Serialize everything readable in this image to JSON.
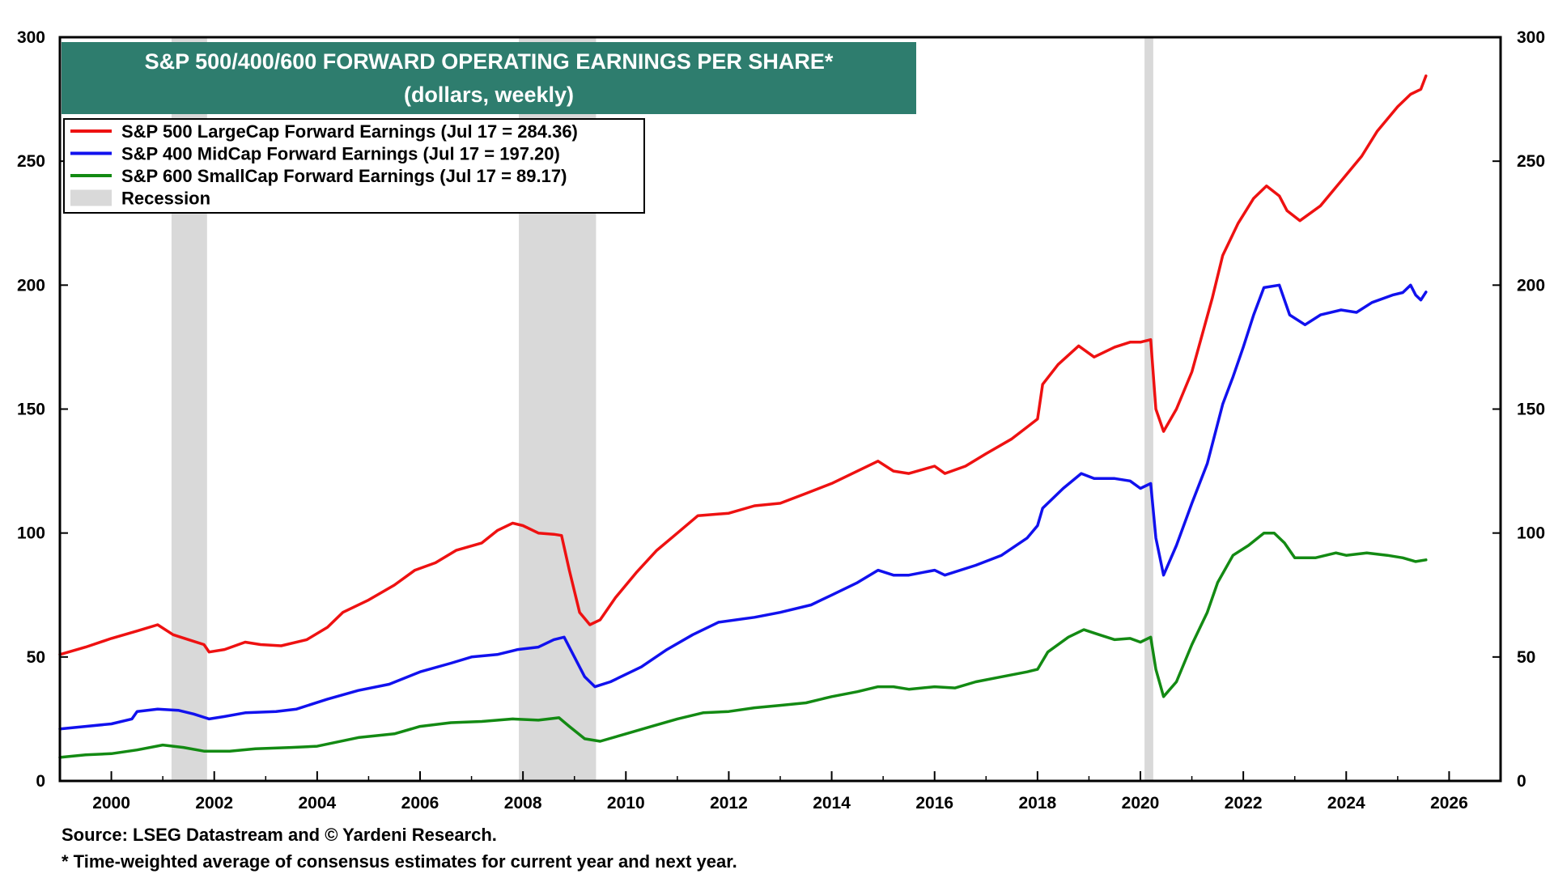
{
  "chart_data": {
    "type": "line",
    "title": "S&P 500/400/600 FORWARD OPERATING EARNINGS PER SHARE*",
    "subtitle": "(dollars, weekly)",
    "xlabel": "",
    "ylabel": "",
    "xlim": [
      1999.0,
      2027.0
    ],
    "ylim": [
      0,
      300
    ],
    "x_ticks": [
      2000,
      2002,
      2004,
      2006,
      2008,
      2010,
      2012,
      2014,
      2016,
      2018,
      2020,
      2022,
      2024,
      2026
    ],
    "x_tick_labels": [
      "2000",
      "2002",
      "2004",
      "2006",
      "2008",
      "2010",
      "2012",
      "2014",
      "2016",
      "2018",
      "2020",
      "2022",
      "2024",
      "2026"
    ],
    "y_ticks": [
      0,
      50,
      100,
      150,
      200,
      250,
      300
    ],
    "y_tick_labels": [
      "0",
      "50",
      "100",
      "150",
      "200",
      "250",
      "300"
    ],
    "recessions": [
      {
        "start": 2001.17,
        "end": 2001.86
      },
      {
        "start": 2007.92,
        "end": 2009.42
      },
      {
        "start": 2020.08,
        "end": 2020.25
      }
    ],
    "legend": [
      {
        "label": "S&P 500 LargeCap Forward Earnings (Jul 17 = 284.36)",
        "color": "#ee1111",
        "kind": "line"
      },
      {
        "label": "S&P 400 MidCap Forward Earnings (Jul 17 = 197.20)",
        "color": "#1111ee",
        "kind": "line"
      },
      {
        "label": "S&P 600 SmallCap Forward Earnings (Jul 17 = 89.17)",
        "color": "#138a13",
        "kind": "line"
      },
      {
        "label": "Recession",
        "color": "#d9d9d9",
        "kind": "box"
      }
    ],
    "series": [
      {
        "name": "S&P 500 LargeCap Forward Earnings",
        "color": "#ee1111",
        "points": [
          [
            1999.0,
            51
          ],
          [
            1999.5,
            54
          ],
          [
            2000.0,
            57.5
          ],
          [
            2000.5,
            60.5
          ],
          [
            2000.9,
            63
          ],
          [
            2001.2,
            59
          ],
          [
            2001.5,
            57
          ],
          [
            2001.8,
            55
          ],
          [
            2001.9,
            52
          ],
          [
            2002.2,
            53
          ],
          [
            2002.6,
            56
          ],
          [
            2002.9,
            55
          ],
          [
            2003.3,
            54.5
          ],
          [
            2003.8,
            57
          ],
          [
            2004.2,
            62
          ],
          [
            2004.5,
            68
          ],
          [
            2005.0,
            73
          ],
          [
            2005.5,
            79
          ],
          [
            2005.9,
            85
          ],
          [
            2006.3,
            88
          ],
          [
            2006.7,
            93
          ],
          [
            2007.2,
            96
          ],
          [
            2007.5,
            101
          ],
          [
            2007.8,
            104
          ],
          [
            2008.0,
            103
          ],
          [
            2008.3,
            100
          ],
          [
            2008.6,
            99.5
          ],
          [
            2008.75,
            99
          ],
          [
            2008.9,
            85
          ],
          [
            2009.1,
            68
          ],
          [
            2009.3,
            63
          ],
          [
            2009.5,
            65
          ],
          [
            2009.8,
            74
          ],
          [
            2010.2,
            84
          ],
          [
            2010.6,
            93
          ],
          [
            2011.0,
            100
          ],
          [
            2011.4,
            107
          ],
          [
            2012.0,
            108
          ],
          [
            2012.5,
            111
          ],
          [
            2013.0,
            112
          ],
          [
            2013.5,
            116
          ],
          [
            2014.0,
            120
          ],
          [
            2014.5,
            125
          ],
          [
            2014.9,
            129
          ],
          [
            2015.2,
            125
          ],
          [
            2015.5,
            124
          ],
          [
            2016.0,
            127
          ],
          [
            2016.2,
            124
          ],
          [
            2016.6,
            127
          ],
          [
            2017.0,
            132
          ],
          [
            2017.5,
            138
          ],
          [
            2018.0,
            146
          ],
          [
            2018.1,
            160
          ],
          [
            2018.4,
            168
          ],
          [
            2018.8,
            175.5
          ],
          [
            2019.1,
            171
          ],
          [
            2019.5,
            175
          ],
          [
            2019.8,
            177
          ],
          [
            2020.0,
            177
          ],
          [
            2020.2,
            178
          ],
          [
            2020.3,
            150
          ],
          [
            2020.45,
            141
          ],
          [
            2020.7,
            150
          ],
          [
            2021.0,
            165
          ],
          [
            2021.2,
            180
          ],
          [
            2021.4,
            195
          ],
          [
            2021.6,
            212
          ],
          [
            2021.9,
            225
          ],
          [
            2022.2,
            235
          ],
          [
            2022.45,
            240
          ],
          [
            2022.7,
            236
          ],
          [
            2022.85,
            230
          ],
          [
            2023.1,
            226
          ],
          [
            2023.5,
            232
          ],
          [
            2023.9,
            242
          ],
          [
            2024.3,
            252
          ],
          [
            2024.6,
            262
          ],
          [
            2025.0,
            272
          ],
          [
            2025.25,
            277
          ],
          [
            2025.45,
            279
          ],
          [
            2025.55,
            284.4
          ]
        ]
      },
      {
        "name": "S&P 400 MidCap Forward Earnings",
        "color": "#1111ee",
        "points": [
          [
            1999.0,
            21
          ],
          [
            1999.5,
            22
          ],
          [
            2000.0,
            23
          ],
          [
            2000.4,
            25
          ],
          [
            2000.5,
            28
          ],
          [
            2000.9,
            29
          ],
          [
            2001.3,
            28.5
          ],
          [
            2001.6,
            27
          ],
          [
            2001.9,
            25
          ],
          [
            2002.2,
            26
          ],
          [
            2002.6,
            27.5
          ],
          [
            2003.2,
            28
          ],
          [
            2003.6,
            29
          ],
          [
            2004.2,
            33
          ],
          [
            2004.8,
            36.5
          ],
          [
            2005.4,
            39
          ],
          [
            2006.0,
            44
          ],
          [
            2006.6,
            47.5
          ],
          [
            2007.0,
            50
          ],
          [
            2007.5,
            51
          ],
          [
            2007.9,
            53
          ],
          [
            2008.3,
            54
          ],
          [
            2008.6,
            57
          ],
          [
            2008.8,
            58
          ],
          [
            2009.0,
            50
          ],
          [
            2009.2,
            42
          ],
          [
            2009.4,
            38
          ],
          [
            2009.7,
            40
          ],
          [
            2010.3,
            46
          ],
          [
            2010.8,
            53
          ],
          [
            2011.3,
            59
          ],
          [
            2011.8,
            64
          ],
          [
            2012.5,
            66
          ],
          [
            2013.0,
            68
          ],
          [
            2013.6,
            71
          ],
          [
            2014.0,
            75
          ],
          [
            2014.5,
            80
          ],
          [
            2014.9,
            85
          ],
          [
            2015.2,
            83
          ],
          [
            2015.5,
            83
          ],
          [
            2016.0,
            85
          ],
          [
            2016.2,
            83
          ],
          [
            2016.8,
            87
          ],
          [
            2017.3,
            91
          ],
          [
            2017.8,
            98
          ],
          [
            2018.0,
            103
          ],
          [
            2018.1,
            110
          ],
          [
            2018.5,
            118
          ],
          [
            2018.85,
            124
          ],
          [
            2019.1,
            122
          ],
          [
            2019.5,
            122
          ],
          [
            2019.8,
            121
          ],
          [
            2020.0,
            118
          ],
          [
            2020.2,
            120
          ],
          [
            2020.3,
            98
          ],
          [
            2020.45,
            83
          ],
          [
            2020.7,
            95
          ],
          [
            2021.0,
            112
          ],
          [
            2021.3,
            128
          ],
          [
            2021.6,
            152
          ],
          [
            2021.8,
            163
          ],
          [
            2022.0,
            175
          ],
          [
            2022.2,
            188
          ],
          [
            2022.4,
            199
          ],
          [
            2022.7,
            200
          ],
          [
            2022.9,
            188
          ],
          [
            2023.2,
            184
          ],
          [
            2023.5,
            188
          ],
          [
            2023.9,
            190
          ],
          [
            2024.2,
            189
          ],
          [
            2024.5,
            193
          ],
          [
            2024.9,
            196
          ],
          [
            2025.1,
            197
          ],
          [
            2025.25,
            200
          ],
          [
            2025.35,
            196
          ],
          [
            2025.45,
            194
          ],
          [
            2025.55,
            197.2
          ]
        ]
      },
      {
        "name": "S&P 600 SmallCap Forward Earnings",
        "color": "#138a13",
        "points": [
          [
            1999.0,
            9.5
          ],
          [
            1999.5,
            10.5
          ],
          [
            2000.0,
            11
          ],
          [
            2000.5,
            12.5
          ],
          [
            2001.0,
            14.5
          ],
          [
            2001.4,
            13.5
          ],
          [
            2001.8,
            12
          ],
          [
            2002.3,
            12
          ],
          [
            2002.8,
            13
          ],
          [
            2003.5,
            13.5
          ],
          [
            2004.0,
            14
          ],
          [
            2004.8,
            17.5
          ],
          [
            2005.5,
            19
          ],
          [
            2006.0,
            22
          ],
          [
            2006.6,
            23.5
          ],
          [
            2007.2,
            24
          ],
          [
            2007.8,
            25
          ],
          [
            2008.3,
            24.5
          ],
          [
            2008.7,
            25.5
          ],
          [
            2008.9,
            22
          ],
          [
            2009.2,
            17
          ],
          [
            2009.5,
            16
          ],
          [
            2010.0,
            19
          ],
          [
            2010.5,
            22
          ],
          [
            2011.0,
            25
          ],
          [
            2011.5,
            27.5
          ],
          [
            2012.0,
            28
          ],
          [
            2012.5,
            29.5
          ],
          [
            2013.0,
            30.5
          ],
          [
            2013.5,
            31.5
          ],
          [
            2014.0,
            34
          ],
          [
            2014.5,
            36
          ],
          [
            2014.9,
            38
          ],
          [
            2015.2,
            38
          ],
          [
            2015.5,
            37
          ],
          [
            2016.0,
            38
          ],
          [
            2016.4,
            37.5
          ],
          [
            2016.8,
            40
          ],
          [
            2017.3,
            42
          ],
          [
            2017.8,
            44
          ],
          [
            2018.0,
            45
          ],
          [
            2018.2,
            52
          ],
          [
            2018.6,
            58
          ],
          [
            2018.9,
            61
          ],
          [
            2019.2,
            59
          ],
          [
            2019.5,
            57
          ],
          [
            2019.8,
            57.5
          ],
          [
            2020.0,
            56
          ],
          [
            2020.2,
            58
          ],
          [
            2020.3,
            45
          ],
          [
            2020.45,
            34
          ],
          [
            2020.7,
            40
          ],
          [
            2021.0,
            55
          ],
          [
            2021.3,
            68
          ],
          [
            2021.5,
            80
          ],
          [
            2021.8,
            91
          ],
          [
            2022.1,
            95
          ],
          [
            2022.4,
            100
          ],
          [
            2022.6,
            100
          ],
          [
            2022.8,
            96
          ],
          [
            2023.0,
            90
          ],
          [
            2023.4,
            90
          ],
          [
            2023.8,
            92
          ],
          [
            2024.0,
            91
          ],
          [
            2024.4,
            92
          ],
          [
            2024.8,
            91
          ],
          [
            2025.1,
            90
          ],
          [
            2025.35,
            88.5
          ],
          [
            2025.55,
            89.2
          ]
        ]
      }
    ]
  },
  "footnotes": {
    "source": "Source: LSEG Datastream and © Yardeni Research.",
    "note": "* Time-weighted average of consensus estimates for current year and next year."
  },
  "colors": {
    "title_box": "#2e7d6e",
    "recession": "#d9d9d9"
  }
}
